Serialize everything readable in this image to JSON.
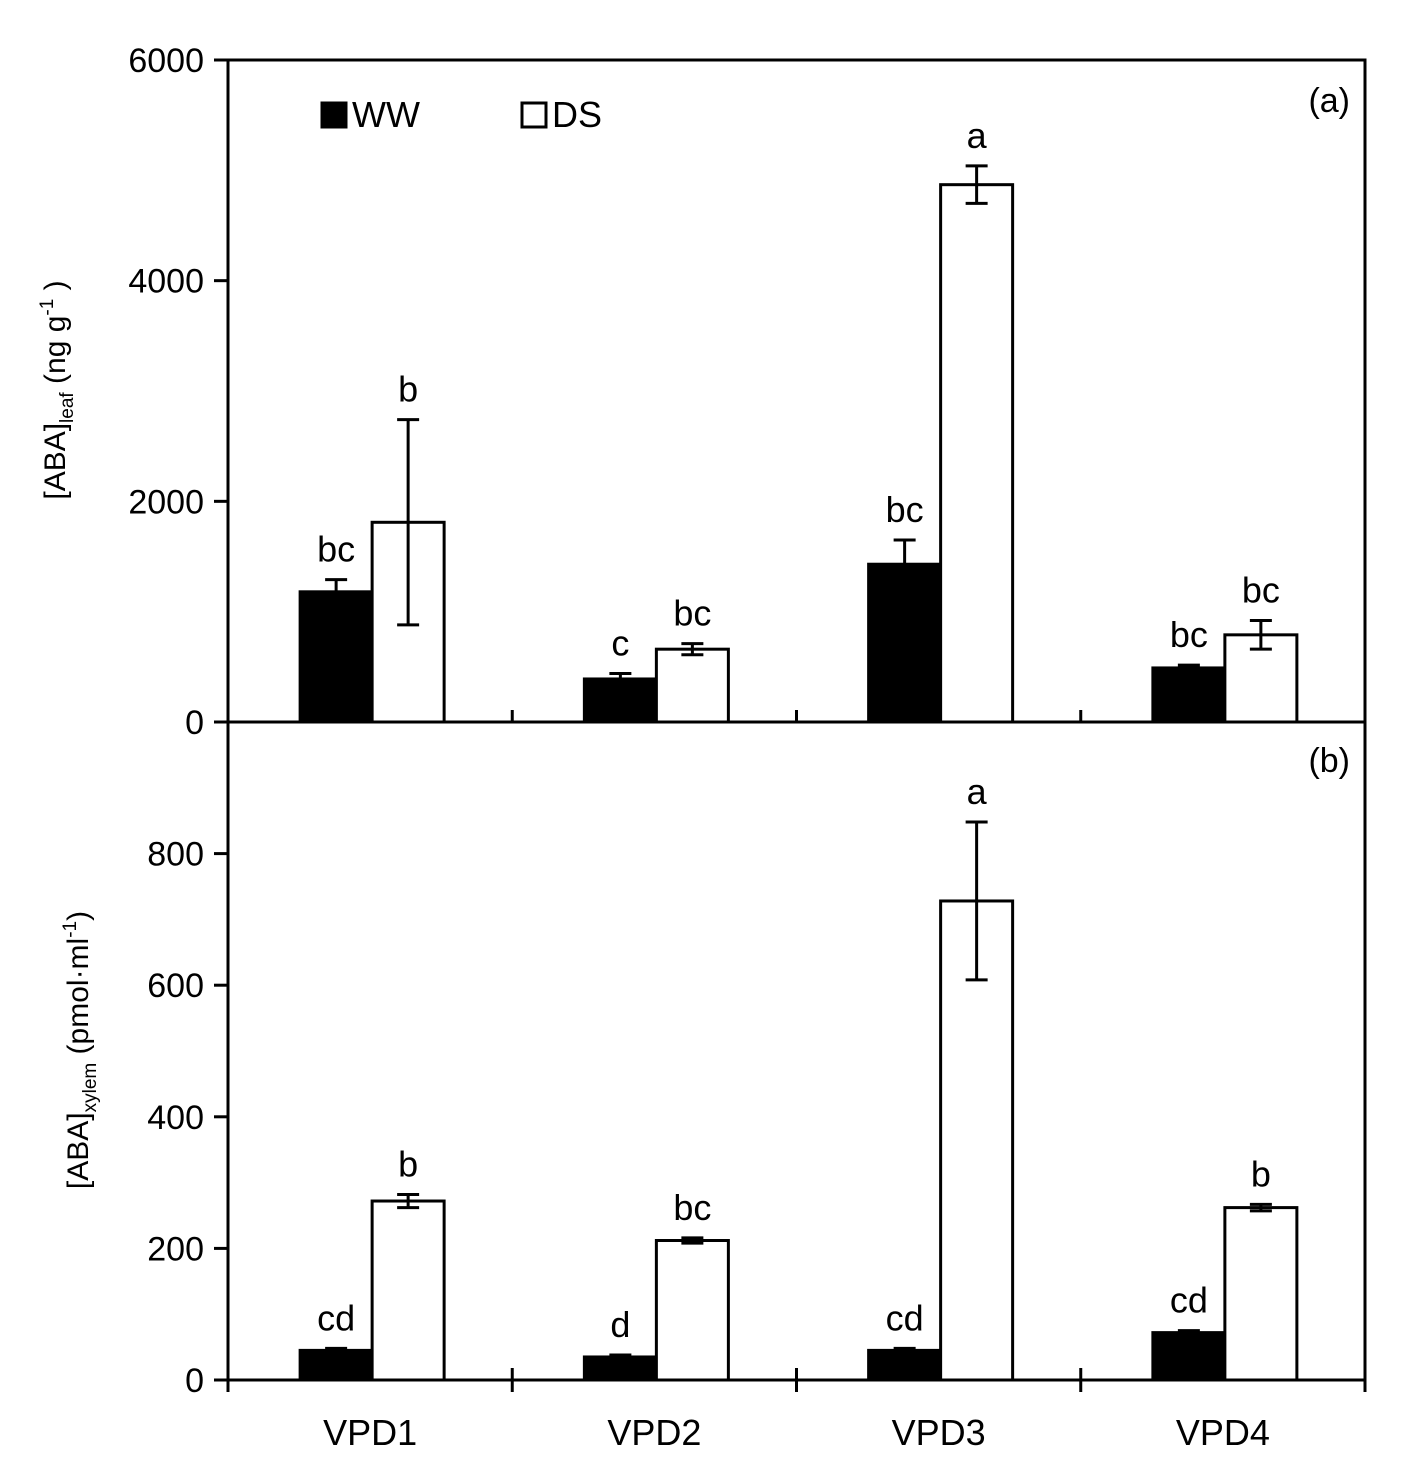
{
  "chart_data": [
    {
      "type": "bar",
      "panel": "(a)",
      "categories": [
        "VPD1",
        "VPD2",
        "VPD3",
        "VPD4"
      ],
      "ylim": [
        0,
        6000
      ],
      "yticks": [
        "0",
        "2000",
        "4000",
        "6000"
      ],
      "ylabel": {
        "main": "[ABA]",
        "sub": "leaf",
        "unit_pre": " (ng g",
        "sup": "-1",
        "unit_post": " )"
      },
      "series": [
        {
          "name": "WW",
          "fill": "#000000",
          "values": [
            1180,
            390,
            1430,
            490
          ],
          "errors": [
            110,
            50,
            220,
            25
          ],
          "letters": [
            "bc",
            "c",
            "bc",
            "bc"
          ]
        },
        {
          "name": "DS",
          "fill": "#ffffff",
          "values": [
            1810,
            660,
            4870,
            790
          ],
          "errors": [
            930,
            50,
            170,
            130
          ],
          "letters": [
            "b",
            "bc",
            "a",
            "bc"
          ]
        }
      ]
    },
    {
      "type": "bar",
      "panel": "(b)",
      "categories": [
        "VPD1",
        "VPD2",
        "VPD3",
        "VPD4"
      ],
      "ylim": [
        0,
        1000
      ],
      "yticks": [
        "0",
        "200",
        "400",
        "600",
        "800"
      ],
      "ylabel": {
        "main": "[ABA]",
        "sub": "xylem",
        "unit_pre": " (pmol·ml",
        "sup": "-1",
        "unit_post": ")"
      },
      "series": [
        {
          "name": "WW",
          "fill": "#000000",
          "values": [
            45,
            35,
            45,
            72
          ],
          "errors": [
            3,
            3,
            3,
            3
          ],
          "letters": [
            "cd",
            "d",
            "cd",
            "cd"
          ]
        },
        {
          "name": "DS",
          "fill": "#ffffff",
          "values": [
            272,
            212,
            728,
            262
          ],
          "errors": [
            10,
            4,
            120,
            5
          ],
          "letters": [
            "b",
            "bc",
            "a",
            "b"
          ]
        }
      ]
    }
  ],
  "legend": [
    {
      "label": "WW",
      "fill": "#000000"
    },
    {
      "label": "DS",
      "fill": "#ffffff"
    }
  ]
}
